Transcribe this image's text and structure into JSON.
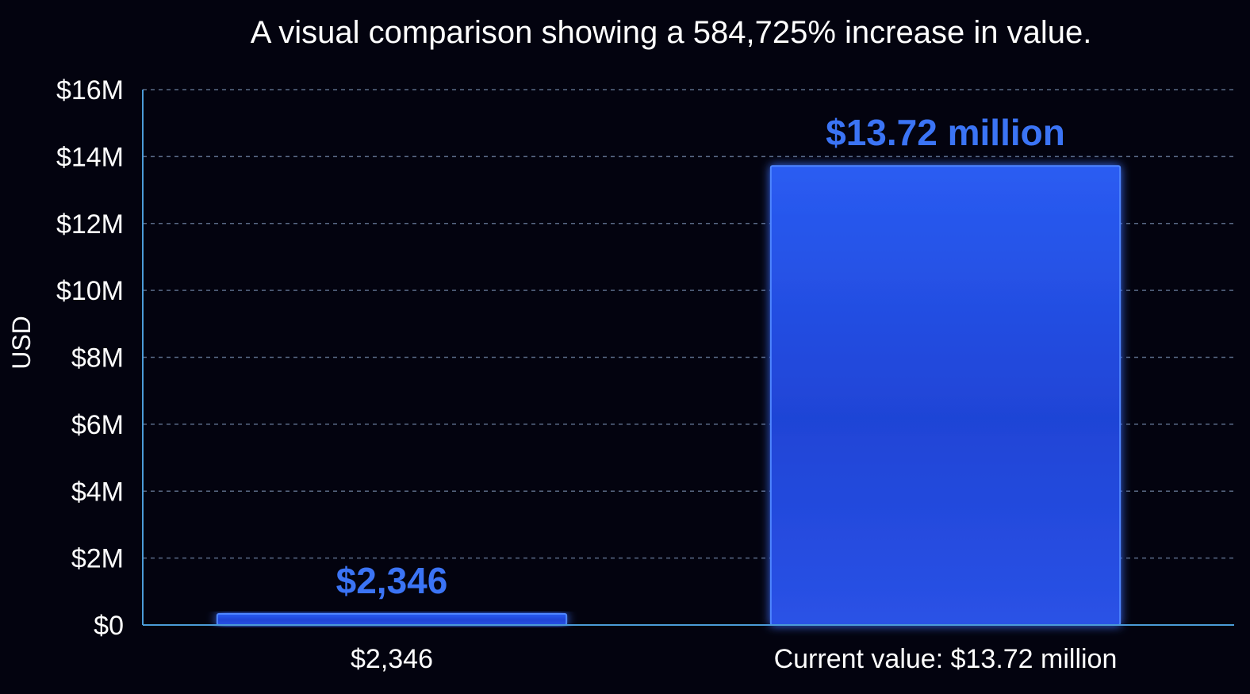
{
  "chart_data": {
    "type": "bar",
    "title": "A visual comparison showing a 584,725% increase in value.",
    "ylabel": "USD",
    "xlabel": "",
    "categories": [
      "$2,346",
      "Current value: $13.72 million"
    ],
    "values": [
      2346,
      13720000
    ],
    "data_labels": [
      "$2,346",
      "$13.72 million"
    ],
    "ylim": [
      0,
      16000000
    ],
    "yticks": [
      0,
      2000000,
      4000000,
      6000000,
      8000000,
      10000000,
      12000000,
      14000000,
      16000000
    ],
    "ytick_labels": [
      "$0",
      "$2M",
      "$4M",
      "$6M",
      "$8M",
      "$10M",
      "$12M",
      "$14M",
      "$16M"
    ],
    "grid": true,
    "colors": {
      "background": "#03030f",
      "bar": "#2b5cf0",
      "bar_edge": "#4f86ff",
      "data_label": "#3b74f5",
      "axis": "#4b9bd8",
      "grid": "#5a6a86",
      "text": "#ffffff"
    }
  }
}
